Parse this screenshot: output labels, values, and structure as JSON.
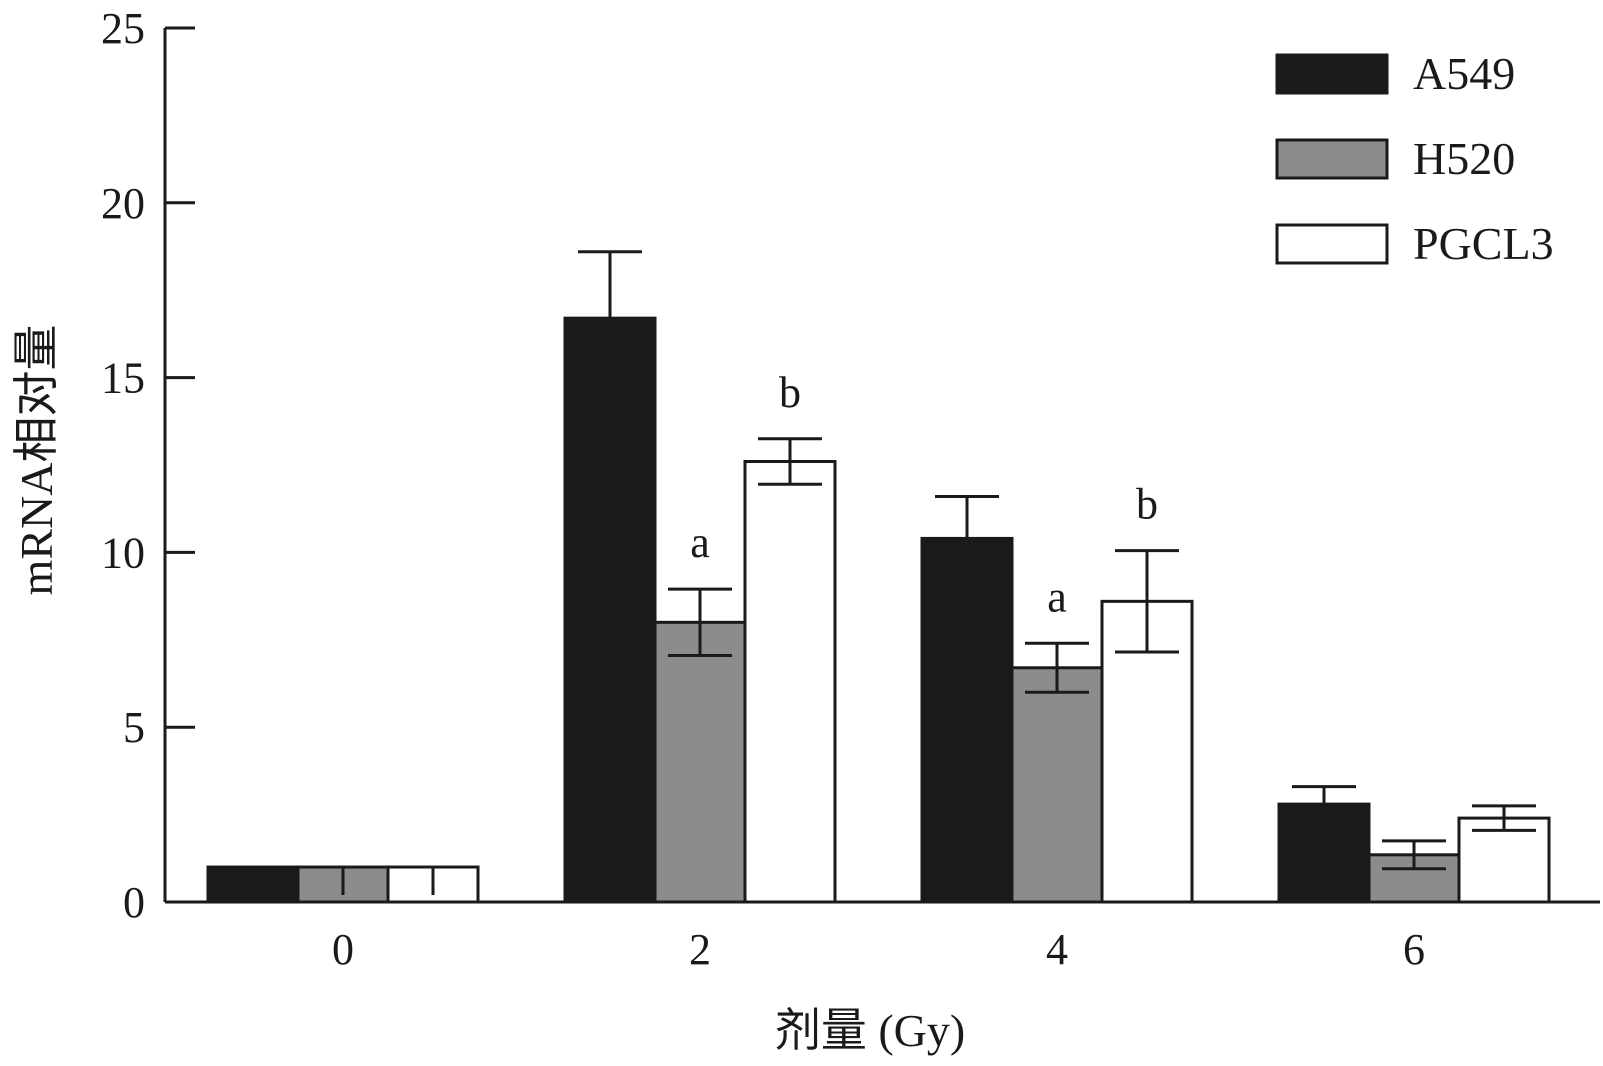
{
  "chart_data": {
    "type": "bar",
    "title": "",
    "xlabel": "剂量 (Gy)",
    "ylabel": "mRNA相对量",
    "categories": [
      "0",
      "2",
      "4",
      "6"
    ],
    "ylim": [
      0,
      25
    ],
    "yticks": [
      "0",
      "5",
      "10",
      "15",
      "20",
      "25"
    ],
    "grid": false,
    "legend_position": "top-right",
    "series": [
      {
        "name": "A549",
        "color": "#1a1a1a",
        "values": [
          1.0,
          16.7,
          10.4,
          2.8
        ],
        "errors": [
          0.0,
          1.9,
          1.2,
          0.5
        ]
      },
      {
        "name": "H520",
        "color": "#8c8c8c",
        "values": [
          1.0,
          8.0,
          6.7,
          1.35
        ],
        "errors": [
          0.0,
          0.95,
          0.7,
          0.4
        ]
      },
      {
        "name": "PGCL3",
        "color": "#ffffff",
        "values": [
          1.0,
          12.6,
          8.6,
          2.4
        ],
        "errors": [
          0.0,
          0.65,
          1.45,
          0.35
        ]
      }
    ],
    "annotations": [
      {
        "series": 1,
        "category": 1,
        "text": "a"
      },
      {
        "series": 2,
        "category": 1,
        "text": "b"
      },
      {
        "series": 1,
        "category": 2,
        "text": "a"
      },
      {
        "series": 2,
        "category": 2,
        "text": "b"
      }
    ]
  }
}
